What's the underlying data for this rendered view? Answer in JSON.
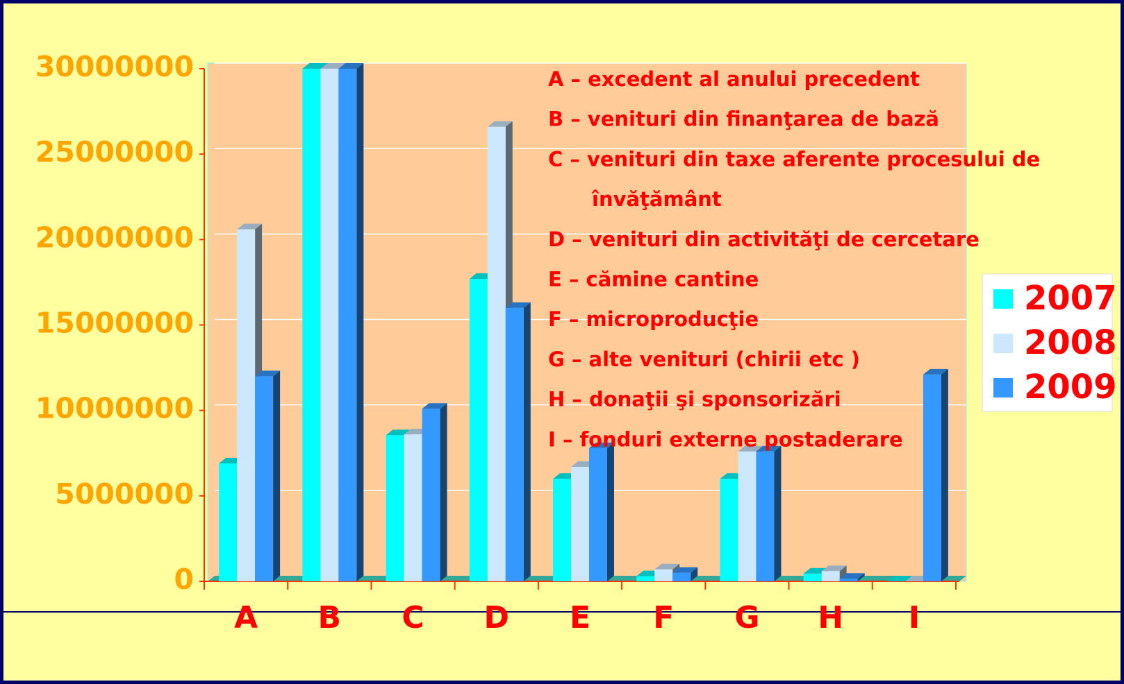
{
  "chart_data": {
    "type": "bar3d",
    "categories": [
      "A",
      "B",
      "C",
      "D",
      "E",
      "F",
      "G",
      "H",
      "I"
    ],
    "series": [
      {
        "name": "2007",
        "color": "#00ffff",
        "values": [
          6900000,
          30000000,
          8550000,
          17700000,
          6000000,
          300000,
          6000000,
          450000,
          0
        ]
      },
      {
        "name": "2008",
        "color": "#cce8ff",
        "values": [
          20600000,
          30000000,
          8600000,
          26600000,
          6700000,
          700000,
          7600000,
          600000,
          0
        ]
      },
      {
        "name": "2009",
        "color": "#3399ff",
        "values": [
          12000000,
          30000000,
          10100000,
          16000000,
          7800000,
          500000,
          7600000,
          150000,
          12100000
        ]
      }
    ],
    "ylim": [
      0,
      30000000
    ],
    "yticks": [
      0,
      5000000,
      10000000,
      15000000,
      20000000,
      25000000,
      30000000
    ],
    "grid": true,
    "legend": "right",
    "annotations": [
      "A – excedent al anului precedent",
      "B – venituri din finanţarea de bază",
      "C – venituri din taxe aferente procesului de",
      "învăţământ",
      "D – venituri din activităţi de cercetare",
      "E – cămine cantine",
      "F – microproducţie",
      "G – alte venituri (chirii  etc )",
      "H – donaţii şi sponsorizări",
      "I – fonduri externe postaderare"
    ]
  }
}
